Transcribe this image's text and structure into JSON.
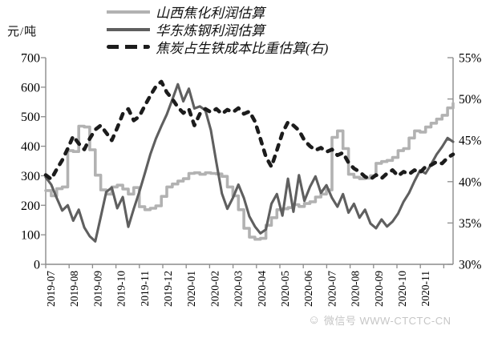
{
  "unit_label": "元/吨",
  "watermark": {
    "icon": "wechat-smiley",
    "text": "微信号 WWW-CTCTC-CN"
  },
  "chart_data": {
    "type": "line",
    "title": "",
    "ylabel_left": "元/吨",
    "left_axis": {
      "min": 0,
      "max": 700,
      "step": 100,
      "ticks": [
        0,
        100,
        200,
        300,
        400,
        500,
        600,
        700
      ]
    },
    "right_axis": {
      "min": 30,
      "max": 55,
      "step": 5,
      "tick_labels": [
        "30%",
        "35%",
        "40%",
        "45%",
        "50%",
        "55%"
      ]
    },
    "grid": false,
    "legend_position": "top",
    "x_labels": [
      "2019-07",
      "2019-08",
      "2019-09",
      "2019-10",
      "2019-11",
      "2019-12",
      "2020-01",
      "2020-02",
      "2020-03",
      "2020-04",
      "2020-05",
      "2020-06",
      "2020-07",
      "2020-08",
      "2020-09",
      "2020-10",
      "2020-11"
    ],
    "colors": {
      "shanxi": "#b2b2b2",
      "huadong": "#5f5f5f",
      "coke_share": "#1c1c1c",
      "axis": "#8c8c8c",
      "text": "#000000",
      "watermark": "#c6c6c6"
    },
    "series": [
      {
        "name": "山西焦化利润估算",
        "axis": "left",
        "style": "step",
        "color_key": "shanxi",
        "values": [
          250,
          232,
          256,
          262,
          385,
          382,
          468,
          465,
          388,
          302,
          252,
          238,
          262,
          268,
          255,
          238,
          260,
          195,
          185,
          190,
          198,
          230,
          262,
          272,
          282,
          290,
          308,
          310,
          305,
          310,
          308,
          306,
          298,
          262,
          232,
          185,
          122,
          92,
          85,
          88,
          132,
          158,
          185,
          188,
          192,
          202,
          196,
          206,
          212,
          228,
          238,
          252,
          430,
          452,
          392,
          305,
          295,
          290,
          292,
          300,
          342,
          348,
          352,
          362,
          385,
          392,
          428,
          452,
          448,
          465,
          478,
          492,
          505,
          530,
          545
        ]
      },
      {
        "name": "华东炼钢利润估算",
        "axis": "left",
        "style": "line",
        "color_key": "huadong",
        "values": [
          295,
          270,
          225,
          182,
          200,
          148,
          185,
          125,
          95,
          78,
          160,
          245,
          260,
          190,
          228,
          127,
          188,
          245,
          308,
          372,
          425,
          468,
          508,
          558,
          610,
          552,
          595,
          528,
          535,
          522,
          455,
          345,
          240,
          188,
          225,
          270,
          225,
          162,
          128,
          105,
          118,
          205,
          238,
          165,
          290,
          178,
          302,
          215,
          262,
          298,
          242,
          268,
          225,
          195,
          238,
          175,
          205,
          158,
          185,
          138,
          122,
          152,
          128,
          145,
          172,
          212,
          242,
          282,
          318,
          308,
          338,
          372,
          398,
          428,
          415
        ]
      },
      {
        "name": "焦炭占生铁成本比重估算(右)",
        "axis": "right",
        "style": "dashed",
        "color_key": "coke_share",
        "values": [
          40.8,
          40.3,
          41.5,
          42.6,
          44.0,
          45.5,
          44.6,
          43.9,
          45.2,
          46.3,
          46.8,
          45.9,
          45.0,
          46.5,
          48.2,
          48.8,
          47.4,
          47.9,
          49.2,
          50.4,
          51.5,
          52.1,
          50.8,
          50.0,
          49.0,
          48.3,
          48.8,
          46.8,
          48.2,
          48.8,
          48.4,
          48.8,
          48.2,
          48.7,
          48.4,
          48.9,
          48.2,
          48.5,
          47.3,
          45.2,
          43.0,
          41.8,
          43.8,
          45.9,
          47.2,
          46.8,
          46.2,
          45.0,
          44.3,
          43.8,
          44.1,
          43.6,
          43.9,
          43.2,
          43.5,
          42.3,
          41.6,
          41.2,
          40.6,
          40.3,
          40.8,
          40.4,
          41.0,
          41.4,
          40.7,
          41.2,
          40.9,
          41.4,
          41.1,
          41.8,
          42.0,
          42.4,
          42.2,
          42.9,
          43.3
        ]
      }
    ]
  }
}
